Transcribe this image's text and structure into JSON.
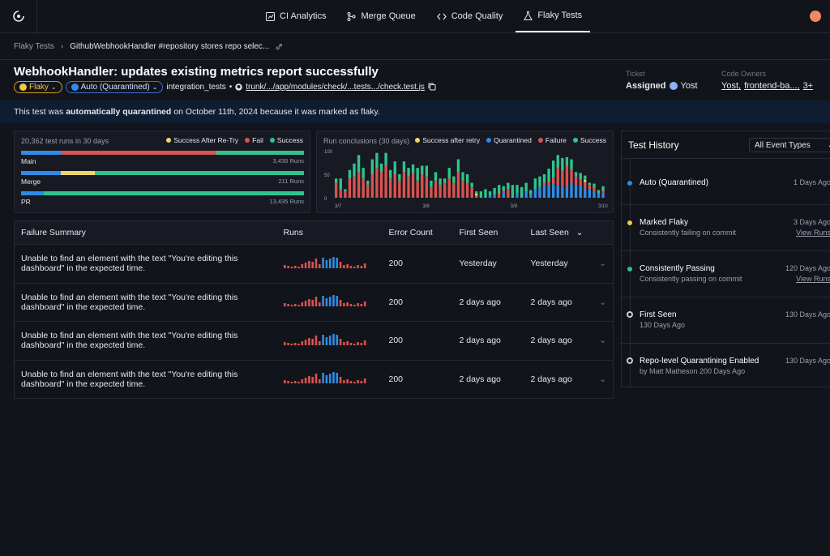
{
  "colors": {
    "success": "#2fc48d",
    "fail": "#d9534f",
    "retry": "#f2d36b",
    "quarantined": "#2f8be6"
  },
  "nav": {
    "items": [
      {
        "label": "CI Analytics",
        "icon": "chart-icon"
      },
      {
        "label": "Merge Queue",
        "icon": "merge-icon"
      },
      {
        "label": "Code Quality",
        "icon": "code-icon"
      },
      {
        "label": "Flaky Tests",
        "icon": "flask-icon",
        "active": true
      }
    ]
  },
  "breadcrumb": {
    "root": "Flaky Tests",
    "current": "GithubWebhookHandler #repository stores repo selec..."
  },
  "test": {
    "title": "WebhookHandler: updates existing metrics report successfully",
    "flaky_label": "Flaky",
    "quarantine_label": "Auto (Quarantined)",
    "suite": "integration_tests",
    "separator": "•",
    "path": "trunk/.../app/modules/check/...tests.../check.test.js"
  },
  "ticket": {
    "label": "Ticket",
    "status": "Assigned",
    "assignee": "Yost"
  },
  "code_owners": {
    "label": "Code Owners",
    "owners": [
      "Yost,",
      "frontend-ba...,"
    ],
    "more": "3+"
  },
  "banner": {
    "prefix": "This test was ",
    "bold": "automatically quarantined",
    "suffix": " on October 11th, 2024 because it was marked as flaky."
  },
  "runs_panel": {
    "header": "20,362 test runs in 30 days",
    "legend": [
      "Success After Re-Try",
      "Fail",
      "Success"
    ],
    "rows": [
      {
        "label": "Main",
        "runs": "3,435 Runs",
        "segments": [
          {
            "type": "quarantined",
            "pct": 14
          },
          {
            "type": "fail",
            "pct": 55
          },
          {
            "type": "success",
            "pct": 31
          }
        ]
      },
      {
        "label": "Merge",
        "runs": "211 Runs",
        "segments": [
          {
            "type": "quarantined",
            "pct": 14
          },
          {
            "type": "retry",
            "pct": 12
          },
          {
            "type": "success",
            "pct": 74
          }
        ]
      },
      {
        "label": "PR",
        "runs": "13,435 Runs",
        "segments": [
          {
            "type": "quarantined",
            "pct": 8
          },
          {
            "type": "fail",
            "pct": 0
          },
          {
            "type": "success",
            "pct": 92
          }
        ]
      }
    ]
  },
  "chart_data": {
    "type": "bar",
    "title": "Run conclusions (30 days)",
    "legend": [
      "Success after retry",
      "Quarantined",
      "Failure",
      "Success"
    ],
    "yticks": [
      "100",
      "50",
      "0"
    ],
    "ylim": [
      0,
      110
    ],
    "xticks": [
      "3/7",
      "3/8",
      "3/9",
      "3/10"
    ],
    "series": [
      {
        "name": "Quarantined",
        "values": [
          0,
          0,
          0,
          0,
          0,
          0,
          0,
          0,
          0,
          0,
          0,
          0,
          0,
          0,
          0,
          0,
          0,
          0,
          0,
          0,
          0,
          0,
          0,
          0,
          0,
          0,
          0,
          0,
          0,
          0,
          0,
          0,
          0,
          0,
          5,
          8,
          0,
          12,
          0,
          0,
          10,
          0,
          15,
          8,
          20,
          25,
          30,
          28,
          32,
          30,
          28,
          25,
          35,
          30,
          28,
          22,
          20,
          15,
          10,
          12
        ]
      },
      {
        "name": "Failure",
        "values": [
          35,
          20,
          15,
          45,
          50,
          60,
          45,
          30,
          55,
          70,
          60,
          75,
          45,
          55,
          40,
          60,
          50,
          58,
          40,
          55,
          50,
          25,
          40,
          30,
          35,
          45,
          35,
          60,
          40,
          35,
          25,
          5,
          0,
          0,
          0,
          0,
          10,
          5,
          20,
          0,
          0,
          0,
          0,
          0,
          0,
          0,
          5,
          10,
          15,
          40,
          35,
          50,
          30,
          20,
          15,
          15,
          10,
          8,
          0,
          5
        ]
      },
      {
        "name": "Success after retry",
        "values": [
          0,
          0,
          0,
          0,
          0,
          0,
          0,
          0,
          0,
          0,
          0,
          0,
          0,
          0,
          0,
          0,
          0,
          0,
          0,
          0,
          0,
          0,
          0,
          0,
          0,
          0,
          0,
          0,
          0,
          0,
          0,
          5,
          0,
          0,
          0,
          0,
          0,
          0,
          0,
          0,
          0,
          0,
          0,
          0,
          0,
          0,
          0,
          0,
          0,
          0,
          0,
          0,
          0,
          0,
          0,
          5,
          0,
          0,
          0,
          0
        ]
      },
      {
        "name": "Success",
        "values": [
          10,
          25,
          5,
          20,
          30,
          40,
          25,
          10,
          35,
          35,
          20,
          30,
          20,
          30,
          15,
          25,
          20,
          20,
          30,
          20,
          25,
          15,
          20,
          15,
          10,
          25,
          15,
          30,
          20,
          20,
          10,
          5,
          15,
          20,
          10,
          15,
          20,
          10,
          15,
          30,
          20,
          25,
          20,
          10,
          25,
          25,
          20,
          30,
          40,
          30,
          30,
          20,
          25,
          10,
          15,
          10,
          5,
          10,
          8,
          10
        ]
      }
    ]
  },
  "failure_table": {
    "headers": {
      "summary": "Failure Summary",
      "runs": "Runs",
      "error_count": "Error Count",
      "first_seen": "First Seen",
      "last_seen": "Last Seen"
    },
    "rows": [
      {
        "message": "Unable to find an element with the text \"You're editing this dashboard\" in the expected time.",
        "error_count": "200",
        "first_seen": "Yesterday",
        "last_seen": "Yesterday"
      },
      {
        "message": "Unable to find an element with the text \"You're editing this dashboard\" in the expected time.",
        "error_count": "200",
        "first_seen": "2 days ago",
        "last_seen": "2 days ago"
      },
      {
        "message": "Unable to find an element with the text \"You're editing this dashboard\" in the expected time.",
        "error_count": "200",
        "first_seen": "2 days ago",
        "last_seen": "2 days ago"
      },
      {
        "message": "Unable to find an element with the text \"You're editing this dashboard\" in the expected time.",
        "error_count": "200",
        "first_seen": "2 days ago",
        "last_seen": "2 days ago"
      }
    ],
    "sparkline": [
      4,
      3,
      2,
      3,
      2,
      5,
      7,
      9,
      8,
      12,
      5,
      13,
      10,
      12,
      14,
      13,
      8,
      4,
      5,
      3,
      2,
      4,
      3,
      6
    ]
  },
  "history": {
    "title": "Test History",
    "filter": "All Event Types",
    "events": [
      {
        "title": "Auto (Quarantined)",
        "subtitle": "",
        "time": "1 Days Ago",
        "link": "",
        "marker": "quarantined"
      },
      {
        "title": "Marked Flaky",
        "subtitle": "Consistently failing on commit",
        "time": "3 Days Ago",
        "link": "View Runs",
        "marker": "flaky"
      },
      {
        "title": "Consistently Passing",
        "subtitle": "Consistently passing on commit",
        "time": "120 Days Ago",
        "link": "View Runs",
        "marker": "passing"
      },
      {
        "title": "First Seen",
        "subtitle": "130 Days Ago",
        "time": "130 Days Ago",
        "link": "",
        "marker": "hollow"
      },
      {
        "title": "Repo-level Quarantining Enabled",
        "subtitle": "by Matt Matheson 200 Days Ago",
        "time": "130 Days Ago",
        "link": "",
        "marker": "hollow"
      }
    ]
  }
}
